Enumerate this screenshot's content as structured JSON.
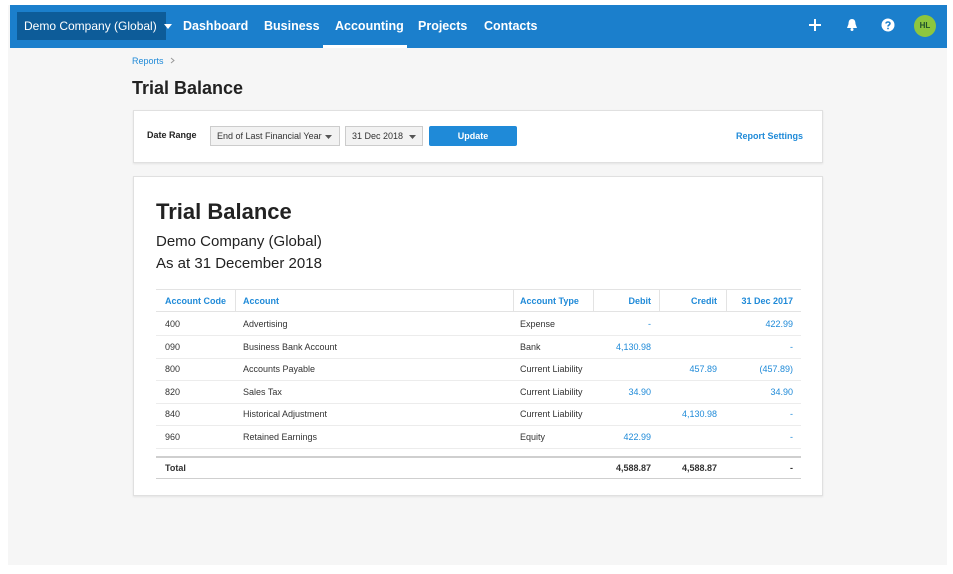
{
  "nav": {
    "org": "Demo Company (Global)",
    "items": [
      "Dashboard",
      "Business",
      "Accounting",
      "Projects",
      "Contacts"
    ],
    "active": 2,
    "avatar": "HL"
  },
  "breadcrumb": "Reports",
  "page_title": "Trial Balance",
  "filters": {
    "label": "Date Range",
    "period": "End of Last Financial Year",
    "date": "31 Dec 2018",
    "button": "Update",
    "settings": "Report Settings"
  },
  "report": {
    "title": "Trial Balance",
    "org": "Demo Company (Global)",
    "date": "As at 31 December 2018",
    "table": {
      "headers": [
        "Account Code",
        "Account",
        "Account Type",
        "Debit",
        "Credit",
        "31 Dec 2017"
      ],
      "rows": [
        [
          "400",
          "Advertising",
          "Expense",
          "-",
          null,
          "422.99"
        ],
        [
          "090",
          "Business Bank Account",
          "Bank",
          "4,130.98",
          null,
          "-"
        ],
        [
          "800",
          "Accounts Payable",
          "Current Liability",
          null,
          "457.89",
          "(457.89)"
        ],
        [
          "820",
          "Sales Tax",
          "Current Liability",
          "34.90",
          null,
          "34.90"
        ],
        [
          "840",
          "Historical Adjustment",
          "Current Liability",
          null,
          "4,130.98",
          "-"
        ],
        [
          "960",
          "Retained Earnings",
          "Equity",
          "422.99",
          null,
          "-"
        ]
      ],
      "total": {
        "label": "Total",
        "debit": "4,588.87",
        "credit": "4,588.87",
        "prior": "-"
      }
    }
  }
}
